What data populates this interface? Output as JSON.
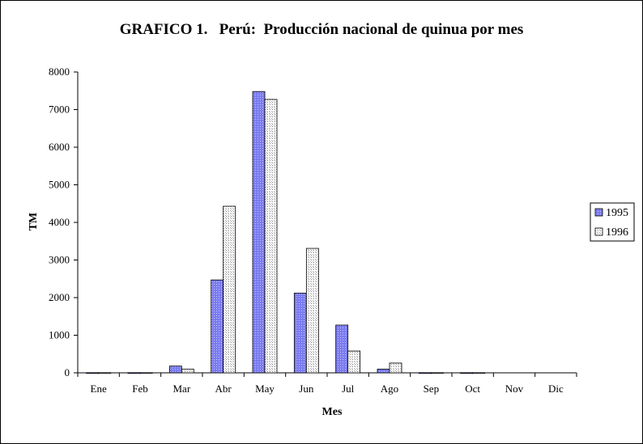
{
  "chart_data": {
    "type": "bar",
    "title": "GRAFICO 1.   Perú:  Producción nacional de quinua por mes",
    "xlabel": "Mes",
    "ylabel": "TM",
    "categories": [
      "Ene",
      "Feb",
      "Mar",
      "Abr",
      "May",
      "Jun",
      "Jul",
      "Ago",
      "Sep",
      "Oct",
      "Nov",
      "Dic"
    ],
    "series": [
      {
        "name": "1995",
        "values": [
          5,
          5,
          180,
          2470,
          7480,
          2120,
          1270,
          100,
          5,
          5,
          0,
          0
        ]
      },
      {
        "name": "1996",
        "values": [
          5,
          5,
          100,
          4430,
          7270,
          3310,
          580,
          260,
          5,
          5,
          0,
          0
        ]
      }
    ],
    "yticks": [
      "0",
      "1000",
      "2000",
      "3000",
      "4000",
      "5000",
      "6000",
      "7000",
      "8000"
    ],
    "ylim": [
      0,
      8000
    ],
    "grid": false,
    "legend_position": "right",
    "colors": {
      "1995": "#7b7bf0",
      "1996": "#ffffff",
      "pattern_dot": "#a0a0a0",
      "axis": "#000000"
    }
  }
}
